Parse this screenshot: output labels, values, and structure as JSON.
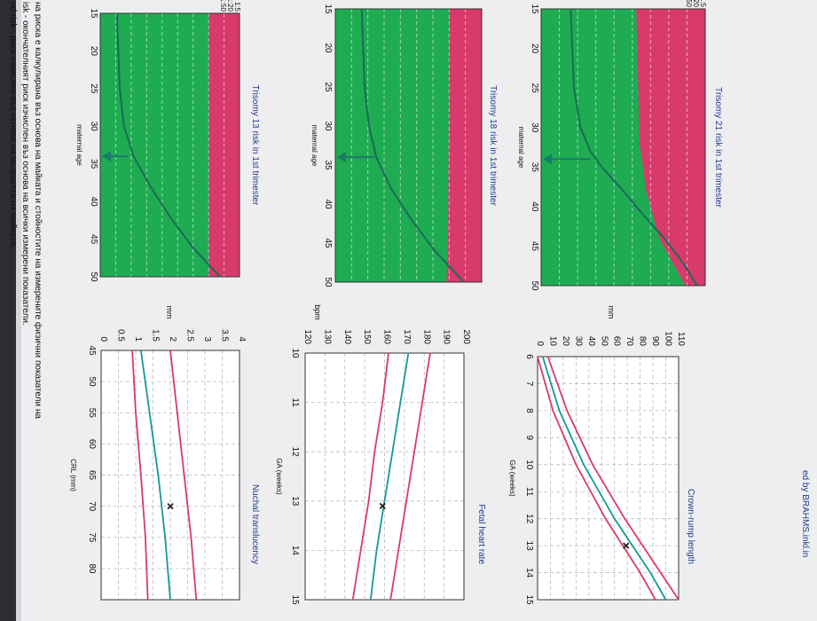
{
  "document": {
    "top_text": "ed by BRAHMS.inkl.in",
    "footnotes": [
      "nd risk - риск изчислен въз основа на възрастта на майката.",
      "isk - окончателният риск изчислен въз основа на всички измерени показатели.",
      "на риска е калкулирана въз основа на майката и стойностите на измерените физични показатели на"
    ]
  },
  "chart_data": [
    {
      "type": "area",
      "title": "Trisomy 21 risk in 1st trimester",
      "xlabel": "maternal age",
      "x_ticks": [
        "15",
        "20",
        "25",
        "30",
        "35",
        "40",
        "45",
        "50"
      ],
      "xlim": [
        15,
        50
      ],
      "y_ticks": [
        "1:5",
        "1:20",
        "1:50"
      ],
      "regions": {
        "high_risk_color": "#d83a6b",
        "low_risk_color": "#1fab52"
      },
      "cutoff_age_trace": [
        [
          15,
          0.58
        ],
        [
          32,
          0.6
        ],
        [
          38,
          0.64
        ],
        [
          44,
          0.72
        ],
        [
          50,
          0.88
        ]
      ],
      "risk_line": [
        [
          15,
          0.18
        ],
        [
          25,
          0.2
        ],
        [
          30,
          0.24
        ],
        [
          33,
          0.3
        ],
        [
          35,
          0.37
        ],
        [
          38,
          0.5
        ],
        [
          41,
          0.62
        ],
        [
          44,
          0.75
        ],
        [
          47,
          0.86
        ],
        [
          50,
          0.95
        ]
      ],
      "marker": {
        "age": 34,
        "value": 0.3
      }
    },
    {
      "type": "area",
      "title": "Trisomy 18 risk in 1st trimester",
      "xlabel": "maternal age",
      "x_ticks": [
        "15",
        "20",
        "25",
        "30",
        "35",
        "40",
        "45",
        "50"
      ],
      "xlim": [
        15,
        50
      ],
      "regions": {
        "high_risk_color": "#d83a6b",
        "low_risk_color": "#1fab52"
      },
      "cutoff_age_trace": [
        [
          15,
          0.78
        ],
        [
          45,
          0.77
        ],
        [
          50,
          0.76
        ]
      ],
      "risk_line": [
        [
          15,
          0.18
        ],
        [
          25,
          0.2
        ],
        [
          30,
          0.23
        ],
        [
          34,
          0.28
        ],
        [
          38,
          0.38
        ],
        [
          42,
          0.52
        ],
        [
          46,
          0.68
        ],
        [
          50,
          0.88
        ]
      ],
      "marker": {
        "age": 34,
        "value": 0.27
      }
    },
    {
      "type": "area",
      "title": "Trisomy 13 risk in 1st trimester",
      "xlabel": "maternal age",
      "x_ticks": [
        "15",
        "20",
        "25",
        "30",
        "35",
        "40",
        "45",
        "50"
      ],
      "xlim": [
        15,
        50
      ],
      "y_ticks": [
        "1:5",
        "1:20",
        "1:50"
      ],
      "regions": {
        "high_risk_color": "#d83a6b",
        "low_risk_color": "#1fab52"
      },
      "cutoff_age_trace": [
        [
          15,
          0.78
        ],
        [
          50,
          0.78
        ]
      ],
      "risk_line": [
        [
          15,
          0.12
        ],
        [
          25,
          0.14
        ],
        [
          30,
          0.17
        ],
        [
          34,
          0.24
        ],
        [
          38,
          0.36
        ],
        [
          42,
          0.5
        ],
        [
          46,
          0.66
        ],
        [
          50,
          0.86
        ]
      ],
      "marker": {
        "age": 34,
        "value": 0.2
      }
    },
    {
      "type": "line",
      "title": "Crown-rump length",
      "xlabel": "GA (weeks)",
      "ylabel": "mm",
      "xlim": [
        6,
        15
      ],
      "ylim": [
        0,
        110
      ],
      "x_ticks": [
        "6",
        "7",
        "8",
        "9",
        "10",
        "11",
        "12",
        "13",
        "14",
        "15"
      ],
      "y_ticks": [
        "0",
        "10",
        "20",
        "30",
        "40",
        "50",
        "60",
        "70",
        "80",
        "90",
        "100",
        "110"
      ],
      "series": [
        {
          "color": "#d83a6b",
          "values": [
            [
              6,
              0
            ],
            [
              8,
              12
            ],
            [
              10,
              30
            ],
            [
              12,
              53
            ],
            [
              14,
              80
            ],
            [
              15,
              92
            ]
          ]
        },
        {
          "color": "#139a92",
          "values": [
            [
              6,
              4
            ],
            [
              8,
              17
            ],
            [
              10,
              36
            ],
            [
              12,
              60
            ],
            [
              14,
              88
            ],
            [
              15,
              100
            ]
          ]
        },
        {
          "color": "#d83a6b",
          "values": [
            [
              6,
              8
            ],
            [
              8,
              23
            ],
            [
              10,
              43
            ],
            [
              12,
              68
            ],
            [
              14,
              96
            ],
            [
              15,
              110
            ]
          ]
        }
      ],
      "marker": {
        "x": 13,
        "y": 69
      }
    },
    {
      "type": "line",
      "title": "Fetal heart rate",
      "xlabel": "GA (weeks)",
      "ylabel": "bpm",
      "xlim": [
        10,
        15
      ],
      "ylim": [
        120,
        200
      ],
      "x_ticks": [
        "10",
        "11",
        "12",
        "13",
        "14",
        "15"
      ],
      "y_ticks": [
        "120",
        "130",
        "140",
        "150",
        "160",
        "170",
        "180",
        "190",
        "200"
      ],
      "series": [
        {
          "color": "#d83a6b",
          "values": [
            [
              10,
              162
            ],
            [
              11,
              159
            ],
            [
              12,
              155
            ],
            [
              13,
              152
            ],
            [
              14,
              148
            ],
            [
              15,
              144
            ]
          ]
        },
        {
          "color": "#139a92",
          "values": [
            [
              10,
              172
            ],
            [
              11,
              168
            ],
            [
              12,
              164
            ],
            [
              13,
              160
            ],
            [
              14,
              156
            ],
            [
              15,
              153
            ]
          ]
        },
        {
          "color": "#d83a6b",
          "values": [
            [
              10,
              183
            ],
            [
              11,
              179
            ],
            [
              12,
              175
            ],
            [
              13,
              171
            ],
            [
              14,
              167
            ],
            [
              15,
              163
            ]
          ]
        }
      ],
      "marker": {
        "x": 13.1,
        "y": 159
      }
    },
    {
      "type": "line",
      "title": "Nuchal translucency",
      "xlabel": "CRL (mm)",
      "ylabel": "mm",
      "xlim": [
        45,
        85
      ],
      "ylim": [
        0,
        4
      ],
      "x_ticks": [
        "45",
        "50",
        "55",
        "60",
        "65",
        "70",
        "75",
        "80"
      ],
      "y_ticks": [
        "0",
        "0.5",
        "1",
        "1.5",
        "2",
        "2.5",
        "3",
        "3.5",
        "4"
      ],
      "series": [
        {
          "color": "#d83a6b",
          "values": [
            [
              45,
              0.9
            ],
            [
              55,
              1.0
            ],
            [
              65,
              1.15
            ],
            [
              75,
              1.28
            ],
            [
              85,
              1.35
            ]
          ]
        },
        {
          "color": "#139a92",
          "values": [
            [
              45,
              1.15
            ],
            [
              55,
              1.4
            ],
            [
              65,
              1.65
            ],
            [
              75,
              1.85
            ],
            [
              85,
              2.0
            ]
          ]
        },
        {
          "color": "#d83a6b",
          "values": [
            [
              45,
              2.0
            ],
            [
              55,
              2.2
            ],
            [
              65,
              2.4
            ],
            [
              75,
              2.6
            ],
            [
              85,
              2.75
            ]
          ]
        }
      ],
      "marker": {
        "x": 70,
        "y": 2.0
      }
    }
  ]
}
